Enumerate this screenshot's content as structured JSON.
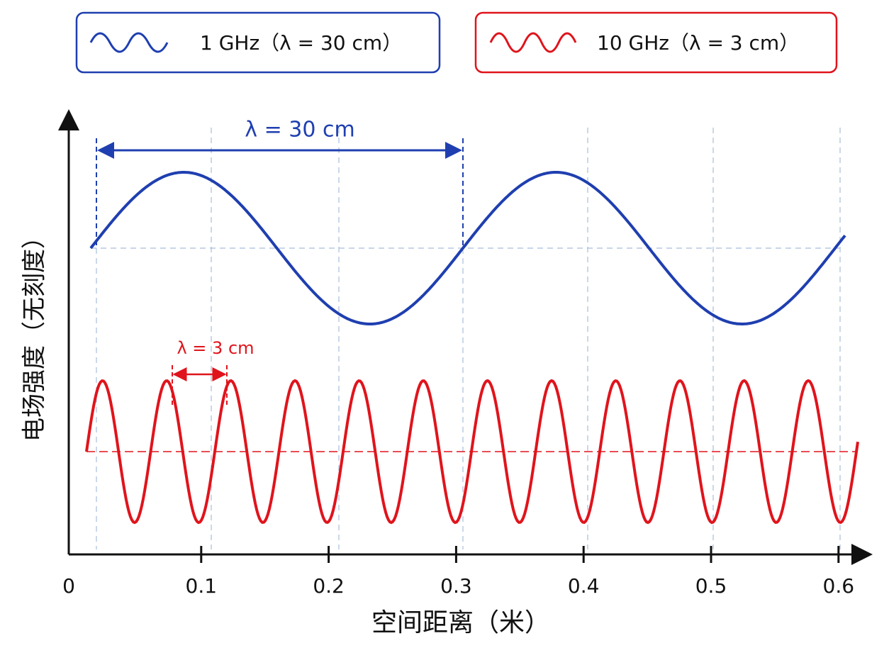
{
  "legend": [
    {
      "label": "1 GHz（λ = 30 cm）",
      "color": "#1f3fb0"
    },
    {
      "label": "10 GHz（λ = 3 cm）",
      "color": "#e0141c"
    }
  ],
  "annotations": {
    "blue_wavelength": "λ = 30 cm",
    "red_wavelength": "λ = 3 cm"
  },
  "axes": {
    "x_label": "空间距离（米）",
    "y_label": "电场强度（无刻度）",
    "xticks": [
      0,
      0.1,
      0.2,
      0.3,
      0.4,
      0.5,
      0.6
    ]
  }
}
